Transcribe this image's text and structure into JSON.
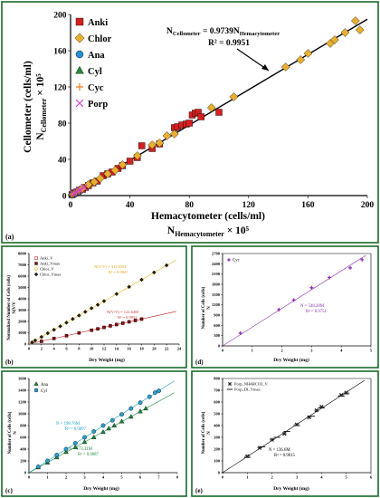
{
  "panels": {
    "a": {
      "tag": "(a)"
    },
    "b": {
      "tag": "(b)"
    },
    "c": {
      "tag": "(c)"
    },
    "d": {
      "tag": "(d)"
    },
    "e": {
      "tag": "(e)"
    }
  },
  "chart_data": [
    {
      "id": "a",
      "type": "scatter",
      "xlabel": "Hemacytometer (cells/ml)",
      "xlabel2": "N",
      "xlabel2_sub": "Hemacytometer",
      "xlabel2_tail": " × 10⁵",
      "ylabel": "Cellometer (cells/ml)",
      "ylabel2": "N",
      "ylabel2_sub": "Cellometer",
      "ylabel2_tail": " × 10⁵",
      "xlim": [
        0,
        200
      ],
      "ylim": [
        0,
        200
      ],
      "xticks": [
        "0",
        "40",
        "80",
        "120",
        "160",
        "200"
      ],
      "yticks": [
        "0",
        "40",
        "80",
        "120",
        "160",
        "200"
      ],
      "eq_prefix": "N",
      "eq_sub1": "Cellometer",
      "eq_mid": " = 0.9739N",
      "eq_sub2": "Hemacytometer",
      "r2": "R² = 0.9951",
      "fit": {
        "slope": 0.9739,
        "intercept": 0
      },
      "series": [
        {
          "name": "Anki",
          "marker": "square",
          "color": "#d42020",
          "points": [
            [
              1,
              1
            ],
            [
              2,
              2
            ],
            [
              3,
              3
            ],
            [
              4,
              4
            ],
            [
              6,
              6
            ],
            [
              8,
              7
            ],
            [
              10,
              9
            ],
            [
              12,
              11
            ],
            [
              15,
              14
            ],
            [
              18,
              16
            ],
            [
              22,
              22
            ],
            [
              25,
              24
            ],
            [
              28,
              26
            ],
            [
              32,
              30
            ],
            [
              35,
              33
            ],
            [
              40,
              38
            ],
            [
              45,
              42
            ],
            [
              48,
              55
            ],
            [
              55,
              52
            ],
            [
              60,
              57
            ],
            [
              70,
              75
            ],
            [
              72,
              76
            ],
            [
              75,
              78
            ],
            [
              78,
              79
            ],
            [
              80,
              80
            ],
            [
              82,
              89
            ],
            [
              84,
              91
            ],
            [
              86,
              92
            ],
            [
              88,
              87
            ],
            [
              100,
              92
            ]
          ]
        },
        {
          "name": "Chlor",
          "marker": "diamond",
          "color": "#e8b030",
          "points": [
            [
              1,
              1
            ],
            [
              3,
              3
            ],
            [
              5,
              5
            ],
            [
              8,
              8
            ],
            [
              12,
              12
            ],
            [
              16,
              15
            ],
            [
              20,
              19
            ],
            [
              25,
              24
            ],
            [
              30,
              28
            ],
            [
              35,
              34
            ],
            [
              45,
              44
            ],
            [
              55,
              56
            ],
            [
              60,
              58
            ],
            [
              65,
              66
            ],
            [
              70,
              68
            ],
            [
              95,
              97
            ],
            [
              110,
              109
            ],
            [
              145,
              142
            ],
            [
              155,
              150
            ],
            [
              160,
              157
            ],
            [
              175,
              168
            ],
            [
              178,
              172
            ],
            [
              185,
              180
            ],
            [
              192,
              193
            ],
            [
              195,
              183
            ]
          ]
        },
        {
          "name": "Ana",
          "marker": "circle",
          "color": "#2a8fd0",
          "points": [
            [
              1,
              1
            ],
            [
              2,
              1
            ],
            [
              3,
              2
            ],
            [
              4,
              3
            ]
          ]
        },
        {
          "name": "Cyl",
          "marker": "triangle",
          "color": "#2a8a3a",
          "points": [
            [
              1,
              1
            ],
            [
              2,
              2
            ],
            [
              3,
              3
            ],
            [
              5,
              4
            ]
          ]
        },
        {
          "name": "Cyc",
          "marker": "plus",
          "color": "#f08020",
          "points": [
            [
              1,
              1
            ],
            [
              2,
              2
            ],
            [
              4,
              4
            ],
            [
              6,
              6
            ],
            [
              8,
              8
            ]
          ]
        },
        {
          "name": "Porp",
          "marker": "cross",
          "color": "#d040d0",
          "points": [
            [
              2,
              2
            ],
            [
              4,
              4
            ],
            [
              6,
              6
            ],
            [
              9,
              9
            ]
          ]
        }
      ]
    },
    {
      "id": "b",
      "type": "line",
      "xlabel": "Dry Weight (mg)",
      "ylabel": "Normalized Number of Cells (cells)",
      "ylabel2": "N(V/V",
      "xlim": [
        0,
        24
      ],
      "ylim": [
        0,
        8000
      ],
      "xticks": [
        "0",
        "2",
        "4",
        "6",
        "8",
        "10",
        "12",
        "14",
        "16",
        "18",
        "20",
        "22",
        "24"
      ],
      "yticks": [
        "0",
        "1000",
        "2000",
        "3000",
        "4000",
        "5000",
        "6000",
        "7000",
        "8000"
      ],
      "ann_top": "N",
      "ann_top_tail": "(V/V",
      "ann_top_eq": ") = 315.93M",
      "ann_top_r2": "R² = 0.9947",
      "ann_bot": "N",
      "ann_bot_eq": "(V/V",
      "ann_bot_eq2": ") = 122.64M",
      "ann_bot_r2": "R² = 0.9952",
      "series": [
        {
          "name": "Anki_V",
          "marker": "square-open",
          "color": "#d03030",
          "slope": 122.64,
          "points": [
            [
              2,
              240
            ],
            [
              4,
              500
            ],
            [
              6,
              730
            ],
            [
              8,
              980
            ],
            [
              10,
              1230
            ],
            [
              11,
              1350
            ],
            [
              12,
              1480
            ],
            [
              13,
              1600
            ],
            [
              14,
              1720
            ],
            [
              15,
              1840
            ],
            [
              16,
              1960
            ],
            [
              17,
              2090
            ],
            [
              18,
              2200
            ]
          ]
        },
        {
          "name": "Anki_Vmax",
          "marker": "square",
          "color": "#8a1010",
          "slope": 122.64,
          "points": [
            [
              2,
              250
            ],
            [
              4,
              490
            ],
            [
              6,
              740
            ],
            [
              8,
              990
            ],
            [
              10,
              1220
            ],
            [
              11,
              1340
            ],
            [
              12,
              1470
            ],
            [
              13,
              1610
            ],
            [
              14,
              1730
            ],
            [
              15,
              1850
            ],
            [
              16,
              1970
            ],
            [
              17,
              2080
            ],
            [
              18,
              2210
            ]
          ]
        },
        {
          "name": "Chlor_V",
          "marker": "diamond-open",
          "color": "#e8b020",
          "slope": 315.93,
          "points": [
            [
              0.5,
              160
            ],
            [
              1,
              330
            ],
            [
              2,
              640
            ],
            [
              3,
              950
            ],
            [
              4,
              1260
            ],
            [
              5,
              1580
            ],
            [
              6,
              1900
            ],
            [
              7,
              2210
            ],
            [
              8,
              2530
            ],
            [
              9,
              2840
            ],
            [
              10,
              3160
            ],
            [
              11,
              3480
            ],
            [
              12,
              3790
            ],
            [
              14,
              4420
            ],
            [
              16,
              5050
            ],
            [
              18,
              5690
            ],
            [
              20,
              6320
            ],
            [
              22,
              6950
            ]
          ]
        },
        {
          "name": "Chlor_Vmax",
          "marker": "diamond",
          "color": "#202020",
          "slope": 315.93,
          "points": [
            [
              0.5,
              150
            ],
            [
              1,
              320
            ],
            [
              2,
              630
            ],
            [
              3,
              960
            ],
            [
              4,
              1270
            ],
            [
              5,
              1570
            ],
            [
              6,
              1890
            ],
            [
              7,
              2220
            ],
            [
              8,
              2520
            ],
            [
              9,
              2850
            ],
            [
              10,
              3170
            ],
            [
              11,
              3470
            ],
            [
              12,
              3800
            ],
            [
              14,
              4430
            ],
            [
              16,
              5060
            ],
            [
              18,
              5680
            ],
            [
              20,
              6330
            ],
            [
              22,
              6960
            ]
          ]
        }
      ]
    },
    {
      "id": "d",
      "type": "scatter",
      "xlabel": "Dry Weight (mg)",
      "ylabel": "Number of Cells (cells)",
      "ylabel2": "N",
      "xlim": [
        0,
        5
      ],
      "ylim": [
        0,
        2700
      ],
      "xticks": [
        "0",
        "1",
        "2",
        "3",
        "4",
        "5"
      ],
      "yticks": [
        "0",
        "300",
        "600",
        "900",
        "1200",
        "1500",
        "1800",
        "2100",
        "2400",
        "2700"
      ],
      "ann": "N",
      "ann_eq": " = 548.28M",
      "ann_r2": "R² = 0.9751",
      "series": [
        {
          "name": "Cyc",
          "marker": "plus",
          "color": "#8a2bb0",
          "slope": 548.28,
          "points": [
            [
              0.6,
              370
            ],
            [
              1.9,
              1060
            ],
            [
              2.4,
              1340
            ],
            [
              3.0,
              1700
            ],
            [
              3.6,
              2000
            ],
            [
              4.3,
              2280
            ],
            [
              4.7,
              2520
            ]
          ]
        }
      ]
    },
    {
      "id": "c",
      "type": "scatter",
      "xlabel": "Dry Weight (mg)",
      "ylabel": "Number of Cells (cells)",
      "ylabel2": "N",
      "xlim": [
        0,
        8
      ],
      "ylim": [
        0,
        1600
      ],
      "xticks": [
        "0",
        "1",
        "2",
        "3",
        "4",
        "5",
        "6",
        "7",
        "8"
      ],
      "yticks": [
        "0",
        "200",
        "400",
        "600",
        "800",
        "1000",
        "1200",
        "1400",
        "1600"
      ],
      "ann1": "N",
      "ann1_eq": " = 198.76M",
      "ann1_r2": "R² = 0.9897",
      "ann2": "N",
      "ann2_eq": " = 173.11M",
      "ann2_r2": "R² = 0.9887",
      "series": [
        {
          "name": "Ana",
          "marker": "triangle",
          "color": "#1a8a3a",
          "slope": 173.11,
          "points": [
            [
              0.5,
              90
            ],
            [
              1,
              170
            ],
            [
              1.5,
              260
            ],
            [
              2,
              350
            ],
            [
              2.5,
              430
            ],
            [
              3,
              520
            ],
            [
              3.5,
              600
            ],
            [
              4,
              690
            ],
            [
              4.3,
              750
            ],
            [
              4.6,
              800
            ],
            [
              5,
              870
            ],
            [
              5.5,
              950
            ],
            [
              6,
              1040
            ],
            [
              6.3,
              1090
            ]
          ]
        },
        {
          "name": "Cyl",
          "marker": "circle",
          "color": "#2a9fd0",
          "slope": 198.76,
          "points": [
            [
              0.5,
              100
            ],
            [
              1,
              200
            ],
            [
              1.5,
              300
            ],
            [
              2,
              400
            ],
            [
              2.5,
              500
            ],
            [
              3,
              600
            ],
            [
              3.5,
              700
            ],
            [
              4,
              800
            ],
            [
              4.5,
              890
            ],
            [
              5,
              990
            ],
            [
              5.5,
              1090
            ],
            [
              6,
              1190
            ],
            [
              6.5,
              1290
            ],
            [
              6.8,
              1360
            ],
            [
              7,
              1390
            ]
          ]
        }
      ]
    },
    {
      "id": "e",
      "type": "scatter",
      "xlabel": "Dry Weight (mg)",
      "ylabel": "Number of Cells (cells)",
      "ylabel2": "N",
      "xlim": [
        0,
        6
      ],
      "ylim": [
        0,
        800
      ],
      "xticks": [
        "0",
        "1",
        "2",
        "3",
        "4",
        "5",
        "6"
      ],
      "yticks": [
        "0",
        "100",
        "200",
        "300",
        "400",
        "500",
        "600",
        "700",
        "800"
      ],
      "ann": "N",
      "ann_eq": " = 136.6M",
      "ann_r2": "R² = 0.9815",
      "series": [
        {
          "name": "Porp_NH4HCO3_V",
          "marker": "cross",
          "color": "#202020",
          "slope": 136.6,
          "points": [
            [
              1.0,
              140
            ],
            [
              1.5,
              210
            ],
            [
              2.0,
              280
            ],
            [
              2.5,
              330
            ],
            [
              3.0,
              410
            ],
            [
              3.5,
              470
            ],
            [
              3.8,
              530
            ],
            [
              4.0,
              560
            ],
            [
              4.8,
              660
            ],
            [
              5.0,
              680
            ]
          ]
        },
        {
          "name": "Porp_DI_Vmax",
          "marker": "dash",
          "color": "#202020",
          "slope": 136.6,
          "points": [
            [
              1.0,
              130
            ],
            [
              1.6,
              220
            ],
            [
              2.2,
              300
            ],
            [
              2.6,
              350
            ],
            [
              3.0,
              400
            ],
            [
              3.6,
              480
            ],
            [
              4.0,
              550
            ],
            [
              4.8,
              650
            ],
            [
              5.0,
              670
            ]
          ]
        }
      ]
    }
  ]
}
